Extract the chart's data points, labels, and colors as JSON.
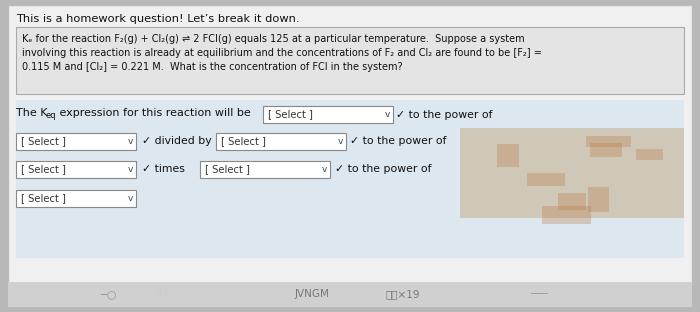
{
  "bg_outer": "#b8b8b8",
  "bg_inner": "#f2f2f2",
  "box_bg": "#e0e0e0",
  "title_text": "This is a homework question! Let’s break it down.",
  "problem_lines": [
    "Kₑ for the reaction F₂(g) + Cl₂(g) ⇌ 2 FCI(g) equals 125 at a particular temperature.  Suppose a system",
    "involving this reaction is already at equilibrium and the concentrations of F₂ and Cl₂ are found to be [F₂] =",
    "0.115 M and [Cl₂] = 0.221 M.  What is the concentration of FCI in the system?"
  ],
  "underlined_words": [
    "temperature",
    "system",
    "[F₂]"
  ],
  "font_color": "#111111",
  "select_bg": "#ffffff",
  "select_border": "#888888",
  "select_label": "[ Select ]",
  "arrow": "∨",
  "to_power": "to the power of",
  "divided_by": "divided by",
  "times_text": "times",
  "checkmark": "✓",
  "light_blue_bg": "#cce0f0",
  "light_blue_alpha": 0.55,
  "map_brown": "#c4a882",
  "map_alpha": 0.7,
  "bottom_taskbar_color": "#d8d8d8",
  "bottom_text1": "———○",
  "bottom_text2": "JVNGM",
  "bottom_text3": "竺竺×19",
  "bottom_text4": "───"
}
